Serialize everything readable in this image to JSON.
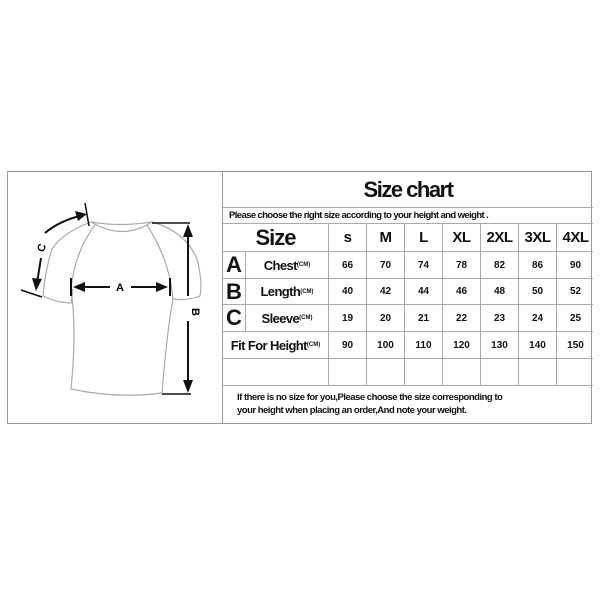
{
  "title": "Size chart",
  "subtitle": "Please choose the right size according to your height and weight .",
  "size_header": "Size",
  "sizes": [
    "s",
    "M",
    "L",
    "XL",
    "2XL",
    "3XL",
    "4XL"
  ],
  "rows": [
    {
      "letter": "A",
      "label": "Chest",
      "unit": "(CM)",
      "values": [
        "66",
        "70",
        "74",
        "78",
        "82",
        "86",
        "90"
      ]
    },
    {
      "letter": "B",
      "label": "Length",
      "unit": "(CM)",
      "values": [
        "40",
        "42",
        "44",
        "46",
        "48",
        "50",
        "52"
      ]
    },
    {
      "letter": "C",
      "label": "Sleeve",
      "unit": "(CM)",
      "values": [
        "19",
        "20",
        "21",
        "22",
        "23",
        "24",
        "25"
      ]
    },
    {
      "letter": "",
      "label": "Fit For Height",
      "unit": "(CM)",
      "values": [
        "90",
        "100",
        "110",
        "120",
        "130",
        "140",
        "150"
      ]
    }
  ],
  "note_line1": "If there is no size for you,Please choose the size corresponding to",
  "note_line2": "your height when placing an order,And note your weight.",
  "diagram_labels": {
    "a": "A",
    "b": "B",
    "c": "C"
  }
}
